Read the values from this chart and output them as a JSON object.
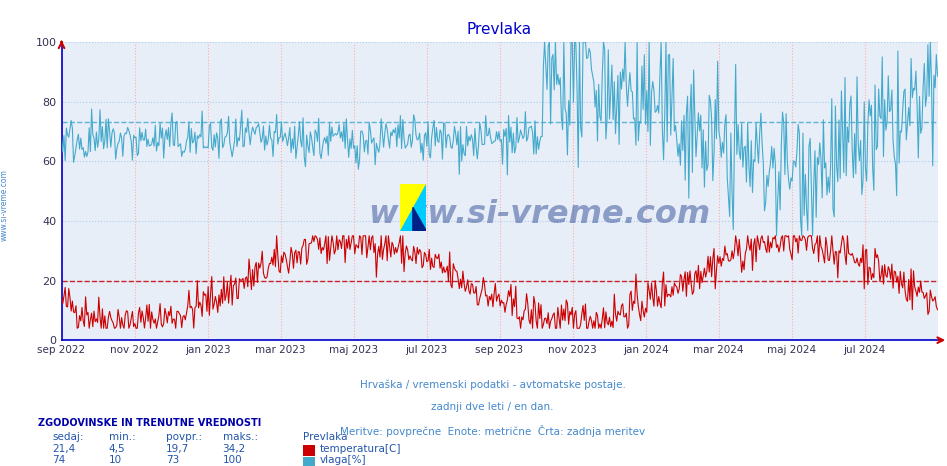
{
  "title": "Prevlaka",
  "title_color": "#0000cc",
  "bg_color": "#ffffff",
  "plot_bg_color": "#e8eef8",
  "grid_color_red": "#ffaaaa",
  "grid_color_blue": "#aaccee",
  "xlabel_line1": "Hrvaška / vremenski podatki - avtomatske postaje.",
  "xlabel_line2": "zadnji dve leti / en dan.",
  "xlabel_line3": "Meritve: povprečne  Enote: metrične  Črta: zadnja meritev",
  "xlabel_color": "#4488cc",
  "left_label": "www.si-vreme.com",
  "x_tick_labels": [
    "sep 2022",
    "nov 2022",
    "jan 2023",
    "mar 2023",
    "maj 2023",
    "jul 2023",
    "sep 2023",
    "nov 2023",
    "jan 2024",
    "mar 2024",
    "maj 2024",
    "jul 2024"
  ],
  "y_ticks": [
    0,
    20,
    40,
    60,
    80,
    100
  ],
  "ylim": [
    0,
    100
  ],
  "temp_color": "#cc0000",
  "hum_color": "#44aacc",
  "temp_avg_line": 19.7,
  "hum_avg_line": 73,
  "watermark": "www.si-vreme.com",
  "watermark_color": "#1a3a8a",
  "legend_title": "Prevlaka",
  "legend_temp": "temperatura[C]",
  "legend_hum": "vlaga[%]",
  "footer_heading": "ZGODOVINSKE IN TRENUTNE VREDNOSTI",
  "footer_cols": [
    "sedaj:",
    "min.:",
    "povpr.:",
    "maks.:"
  ],
  "footer_temp_vals": [
    "21,4",
    "4,5",
    "19,7",
    "34,2"
  ],
  "footer_hum_vals": [
    "74",
    "10",
    "73",
    "100"
  ],
  "temp_box_color": "#cc0000",
  "hum_box_color": "#44aacc",
  "spine_color": "#0000cc",
  "arrow_color": "#cc0000"
}
